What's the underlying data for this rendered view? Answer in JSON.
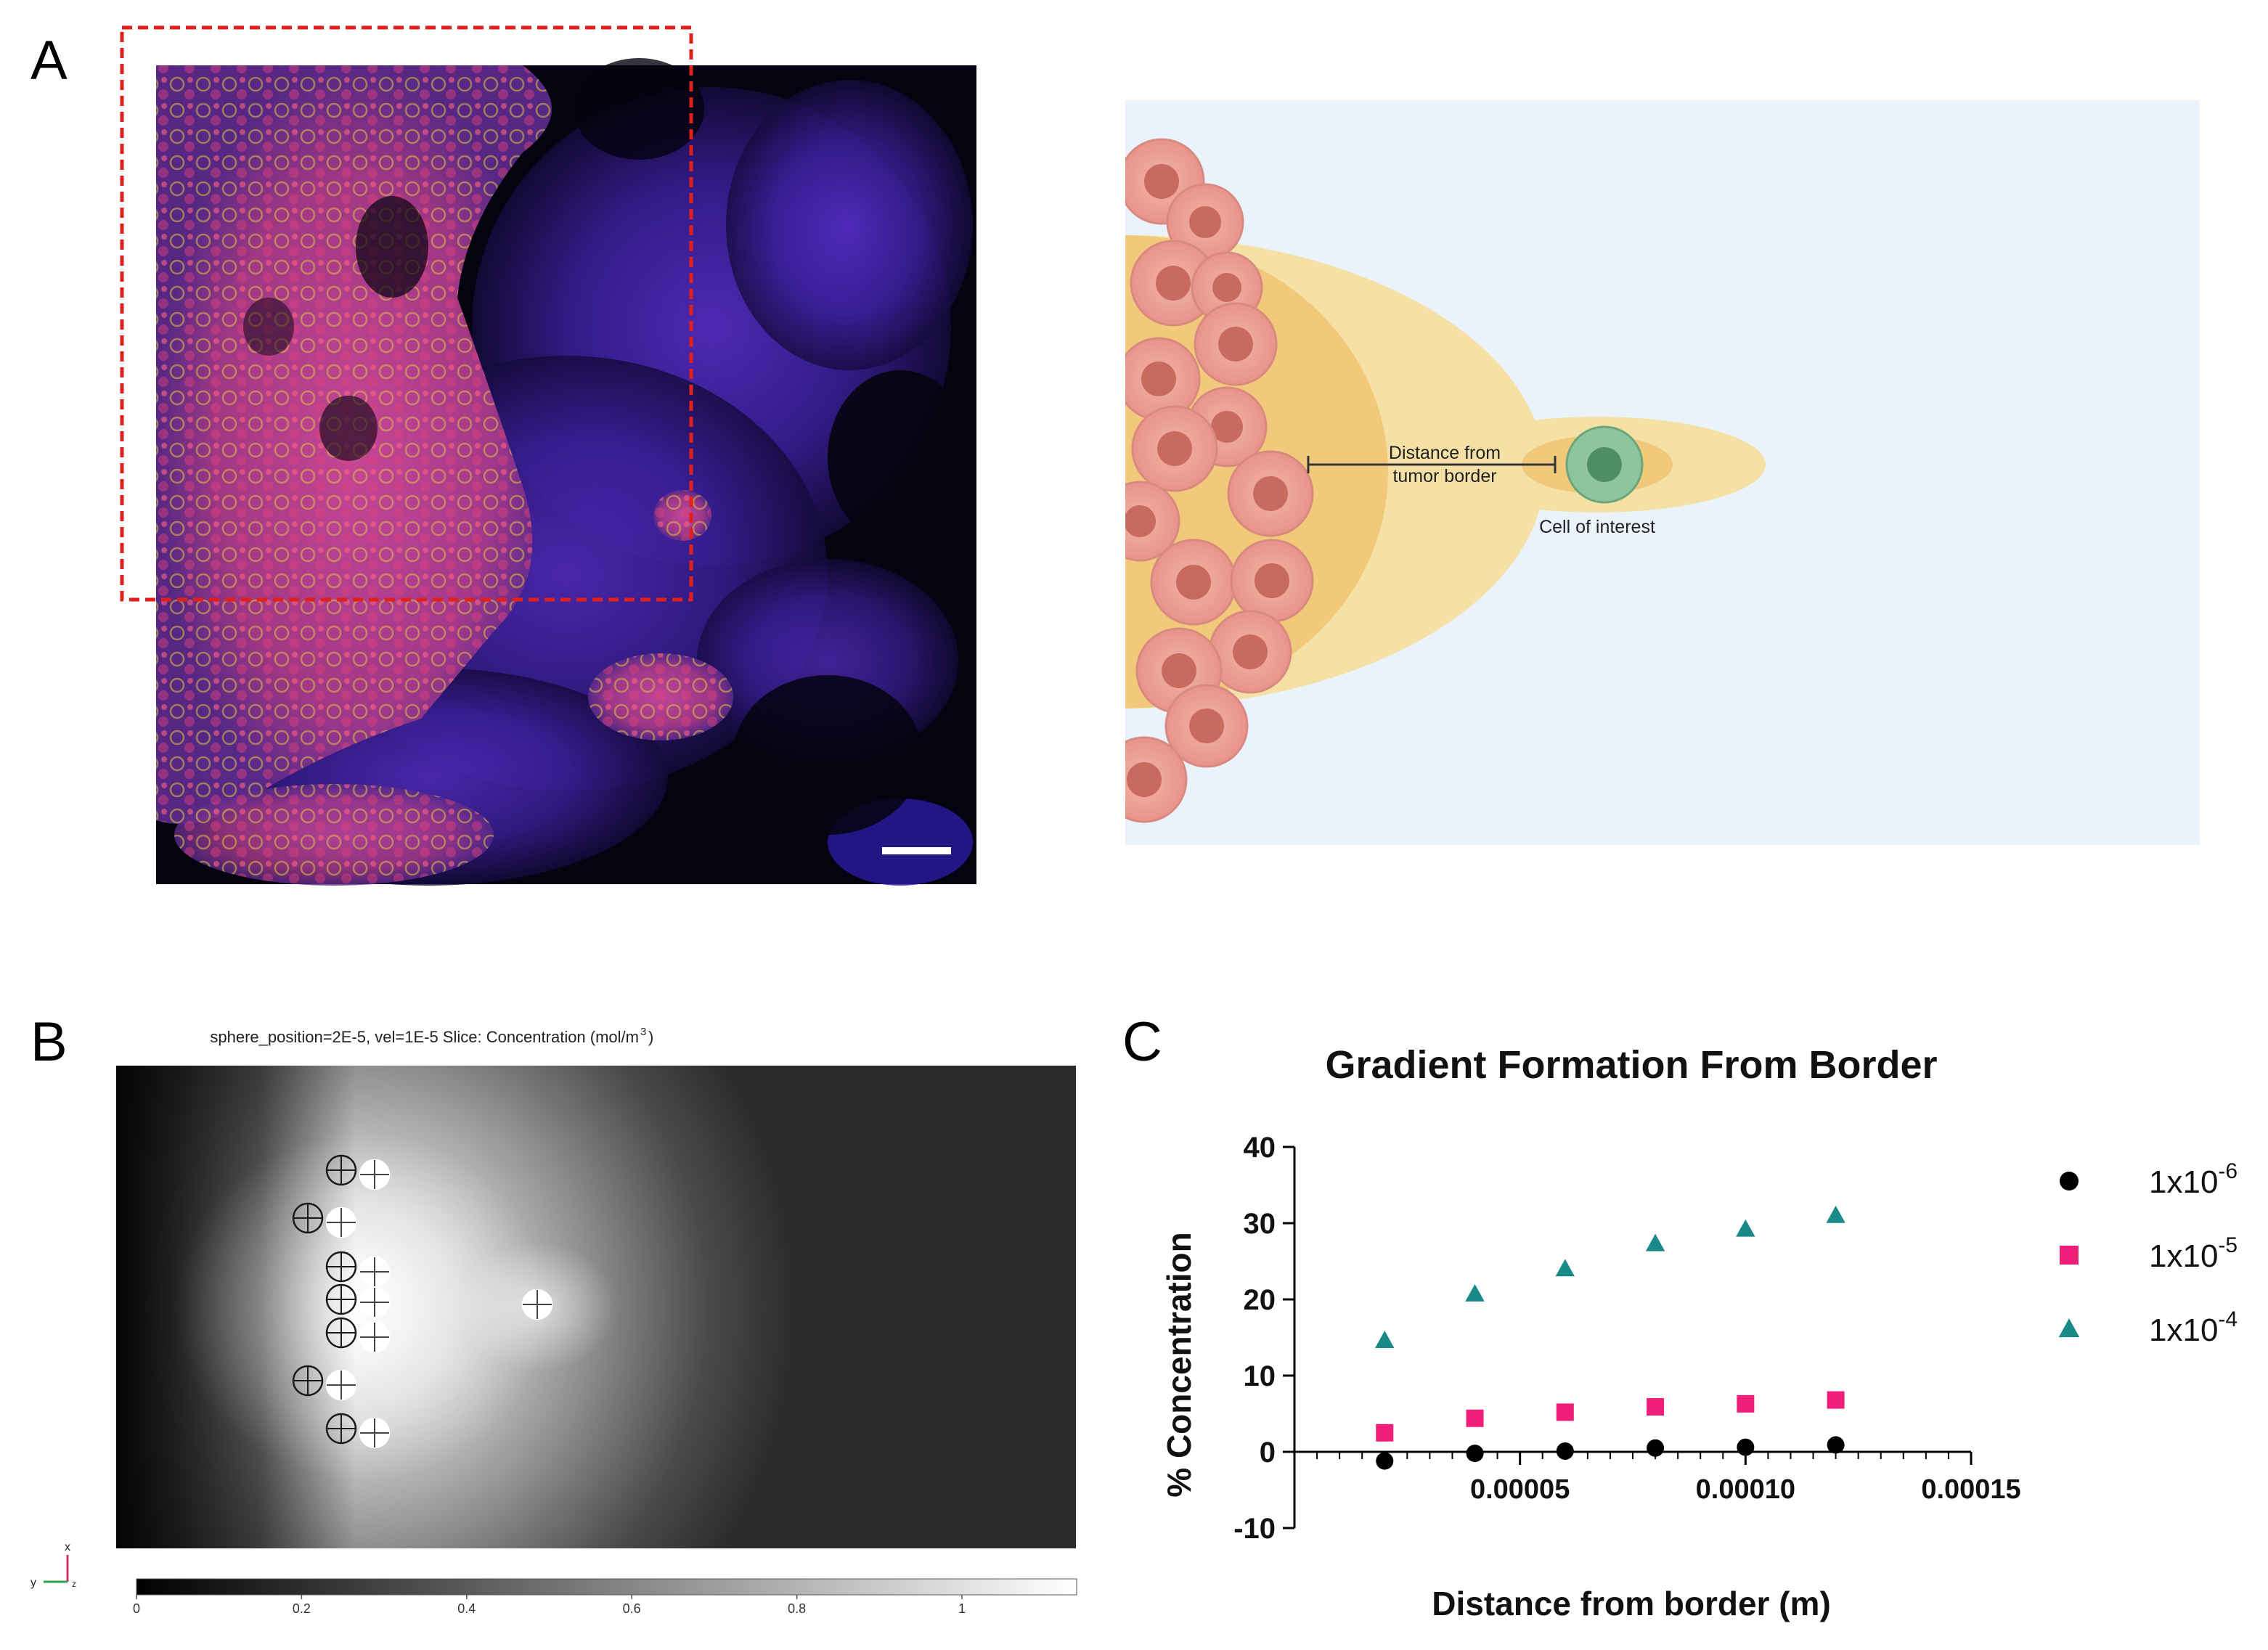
{
  "panel_labels": {
    "a": "A",
    "b": "B",
    "c": "C"
  },
  "schematic": {
    "distance_label_line1": "Distance from",
    "distance_label_line2": "tumor border",
    "cell_label": "Cell of interest"
  },
  "simulation": {
    "title": "sphere_position=2E-5, vel=1E-5   Slice: Concentration (mol/m",
    "title_sup": "3",
    "title_end": ")",
    "colorbar_ticks": [
      "0",
      "0.2",
      "0.4",
      "0.6",
      "0.8",
      "1"
    ],
    "axis_x": "x",
    "axis_y": "y",
    "axis_z": "z"
  },
  "colors": {
    "series_1e6": "#000000",
    "series_1e5": "#ee1e79",
    "series_1e4": "#1a8a88",
    "selection_box": "#e0201c",
    "schematic_bg": "#eaf2fc"
  },
  "chart_data": {
    "type": "scatter",
    "title": "Gradient Formation From Border",
    "xlabel": "Distance from border (m)",
    "ylabel": "% Concentration",
    "xlim": [
      0,
      0.00015
    ],
    "ylim": [
      -10,
      40
    ],
    "x_ticks": [
      "0.00005",
      "0.00010",
      "0.00015"
    ],
    "y_ticks": [
      "-10",
      "0",
      "10",
      "20",
      "30",
      "40"
    ],
    "legend_position": "right",
    "x": [
      2e-05,
      4e-05,
      6e-05,
      8e-05,
      0.0001,
      0.00012
    ],
    "series": [
      {
        "name": "1x10",
        "exp": "-6",
        "marker": "circle",
        "values": [
          -1.2,
          -0.2,
          0.1,
          0.5,
          0.6,
          0.9
        ]
      },
      {
        "name": "1x10",
        "exp": "-5",
        "marker": "square",
        "values": [
          2.5,
          4.4,
          5.2,
          5.9,
          6.3,
          6.8
        ]
      },
      {
        "name": "1x10",
        "exp": "-4",
        "marker": "triangle",
        "values": [
          14.6,
          20.7,
          24.0,
          27.3,
          29.2,
          31.0
        ]
      }
    ]
  }
}
